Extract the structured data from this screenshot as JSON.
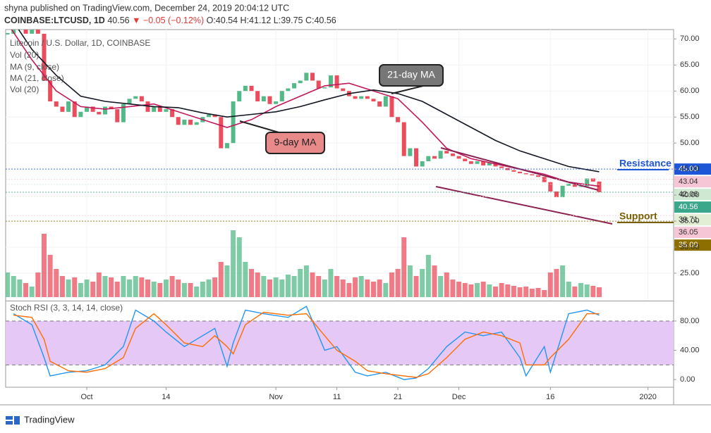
{
  "header": {
    "published": "shyna published on TradingView.com, December 24, 2019 20:04:12 UTC",
    "symbol": "COINBASE:LTCUSD, 1D",
    "last": "40.56",
    "change": "▼ −0.05 (−0.12%)",
    "ohlc": "O:40.54 H:41.12 L:39.75 C:40.56"
  },
  "chart_data": {
    "type": "candlestick",
    "title": "Litecoin / U.S. Dollar, 1D, COINBASE",
    "volume_label": "Vol (20)",
    "up_color": "#53b987",
    "down_color": "#eb4d5c",
    "xlim": [
      -0.3,
      109.2
    ],
    "xticks": [
      {
        "value": 13,
        "label": "Oct"
      },
      {
        "value": 26,
        "label": "14"
      },
      {
        "value": 44,
        "label": "Nov"
      },
      {
        "value": 54,
        "label": "11"
      },
      {
        "value": 64,
        "label": "21"
      },
      {
        "value": 74,
        "label": "Dec"
      },
      {
        "value": 89,
        "label": "16"
      },
      {
        "value": 105,
        "label": "2020"
      }
    ],
    "ylim": [
      20,
      71.8
    ],
    "yticks": [
      {
        "value": 25,
        "label": "25.00"
      },
      {
        "value": 30,
        "label": "30.00"
      },
      {
        "value": 35,
        "label": "35.00"
      },
      {
        "value": 40,
        "label": "40.00"
      },
      {
        "value": 45,
        "label": "45.00"
      },
      {
        "value": 50,
        "label": "50.00"
      },
      {
        "value": 55,
        "label": "55.00"
      },
      {
        "value": 60,
        "label": "60.00"
      },
      {
        "value": 65,
        "label": "65.00"
      },
      {
        "value": 70,
        "label": "70.00"
      }
    ],
    "values": [
      71,
      72,
      72.5,
      71,
      73,
      71,
      62,
      58,
      57,
      56,
      58,
      55,
      56,
      57,
      56,
      55.5,
      57,
      56.5,
      54,
      57.5,
      58.5,
      59,
      58,
      56,
      57,
      56,
      56.5,
      55,
      53.5,
      54.5,
      53.5,
      54,
      55,
      55.5,
      55,
      49,
      50,
      58,
      60,
      61,
      60,
      58,
      59,
      57.5,
      58,
      60,
      60.5,
      61.5,
      62,
      63.5,
      62,
      60.5,
      60.7,
      63,
      60.5,
      60,
      59,
      58.5,
      59,
      58.5,
      58,
      57,
      59,
      55,
      54,
      47.5,
      49,
      45.5,
      46.5,
      47.5,
      47,
      48.5,
      48,
      47.5,
      47,
      46.5,
      46,
      46.5,
      45.7,
      46.2,
      45.5,
      45.2,
      44.8,
      44.5,
      44.2,
      44,
      43.8,
      43.5,
      42.5,
      40.7,
      39.6,
      41.8,
      42.2,
      41.6,
      41.7,
      43.2,
      42.6,
      40.56
    ],
    "volume": {
      "name": "Vol (20)",
      "values": [
        35,
        30,
        25,
        20,
        15,
        35,
        90,
        60,
        40,
        30,
        25,
        28,
        20,
        25,
        22,
        35,
        30,
        28,
        22,
        30,
        25,
        30,
        28,
        25,
        22,
        20,
        25,
        30,
        25,
        20,
        20,
        15,
        22,
        25,
        28,
        50,
        45,
        95,
        85,
        50,
        40,
        35,
        30,
        25,
        28,
        25,
        32,
        30,
        40,
        45,
        35,
        30,
        25,
        40,
        30,
        25,
        20,
        28,
        30,
        25,
        22,
        25,
        20,
        35,
        40,
        85,
        45,
        30,
        40,
        60,
        45,
        30,
        35,
        25,
        22,
        20,
        18,
        20,
        22,
        18,
        15,
        20,
        18,
        16,
        14,
        15,
        12,
        13,
        10,
        35,
        40,
        45,
        22,
        15,
        20,
        18,
        16,
        14
      ]
    },
    "ma": [
      {
        "name": "MA (9, close)",
        "color": "#c2185b",
        "x": [
          0,
          4,
          8,
          12,
          16,
          20,
          24,
          28,
          32,
          36,
          40,
          44,
          48,
          52,
          56,
          60,
          64,
          68,
          72,
          76,
          80,
          84,
          88,
          92,
          97
        ],
        "values": [
          73,
          66,
          60,
          57,
          56.5,
          57,
          57.5,
          56,
          54.5,
          53,
          54.5,
          57,
          59,
          61,
          61.5,
          60,
          58.5,
          54,
          49,
          47,
          46,
          45,
          44,
          42.5,
          41.7
        ]
      },
      {
        "name": "MA (21, close)",
        "color": "#131722",
        "x": [
          0,
          4,
          8,
          12,
          16,
          20,
          24,
          28,
          32,
          36,
          40,
          44,
          48,
          52,
          56,
          60,
          64,
          68,
          72,
          76,
          80,
          84,
          88,
          92,
          97
        ],
        "values": [
          75,
          68,
          63,
          59,
          58,
          57.5,
          57,
          56.8,
          55.8,
          55,
          55.5,
          56,
          57,
          58.3,
          59.5,
          60.2,
          59.5,
          58,
          55.5,
          53,
          50.5,
          48.5,
          47,
          45.5,
          44.5
        ]
      }
    ],
    "price_labels": [
      {
        "value": 45,
        "label": "45.00",
        "color": "#1e56d8"
      },
      {
        "value": 43.04,
        "label": "43.04",
        "color": "#f6c6d6"
      },
      {
        "value": 42.06,
        "label": "42.06",
        "color": "#cfe8d2"
      },
      {
        "value": 40.56,
        "label": "40.56",
        "color": "#3aa68a"
      },
      {
        "value": 39.71,
        "label": "39.71",
        "color": "#e2efd5"
      },
      {
        "value": 36.05,
        "label": "36.05",
        "color": "#f6c6d6"
      },
      {
        "value": 35,
        "label": "35.00",
        "color": "#8d6e00"
      }
    ],
    "annotations": [
      "21-day MA",
      "9-day MA",
      "Resistance",
      "Support"
    ],
    "stoch": {
      "title": "Stoch RSI (3, 3, 14, 14, close)",
      "ylim": [
        -10.5,
        105
      ],
      "band": [
        20,
        80
      ],
      "yticks": [
        {
          "value": 0,
          "label": "0.00"
        },
        {
          "value": 40,
          "label": "40.00"
        },
        {
          "value": 80,
          "label": "80.00"
        }
      ],
      "series": [
        {
          "color": "#2196f3",
          "x": [
            1,
            4,
            6,
            7,
            10,
            13,
            16,
            19,
            21,
            24,
            26,
            29,
            32,
            34,
            36,
            37,
            39,
            42,
            46,
            49,
            52,
            54,
            57,
            59,
            62,
            65,
            67,
            69,
            72,
            75,
            78,
            81,
            84,
            85,
            88,
            89,
            92,
            95,
            97
          ],
          "values": [
            90,
            75,
            30,
            5,
            10,
            12,
            20,
            45,
            95,
            80,
            65,
            45,
            60,
            70,
            18,
            50,
            95,
            90,
            85,
            100,
            40,
            45,
            10,
            5,
            10,
            0,
            2,
            15,
            45,
            65,
            60,
            65,
            30,
            5,
            45,
            10,
            90,
            95,
            88
          ]
        },
        {
          "color": "#ff6d00",
          "x": [
            1,
            4,
            6,
            7,
            10,
            13,
            16,
            19,
            21,
            24,
            26,
            29,
            32,
            34,
            36,
            37,
            39,
            42,
            46,
            49,
            52,
            54,
            57,
            59,
            62,
            65,
            67,
            69,
            72,
            75,
            78,
            81,
            84,
            85,
            88,
            89,
            92,
            95,
            97
          ],
          "values": [
            88,
            85,
            55,
            25,
            12,
            10,
            15,
            30,
            70,
            90,
            75,
            50,
            45,
            60,
            45,
            35,
            75,
            92,
            88,
            90,
            60,
            40,
            25,
            12,
            8,
            5,
            3,
            8,
            30,
            55,
            65,
            60,
            50,
            20,
            20,
            30,
            55,
            90,
            90
          ]
        }
      ]
    }
  },
  "footer": {
    "brand": "TradingView"
  }
}
